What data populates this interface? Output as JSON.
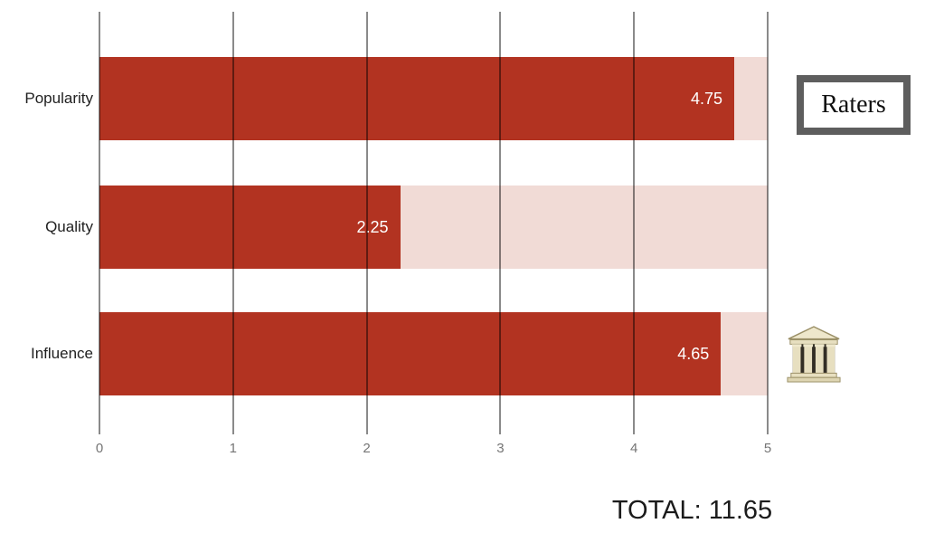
{
  "chart_data": {
    "type": "bar",
    "orientation": "horizontal",
    "title": "",
    "categories": [
      "Popularity",
      "Quality",
      "Influence"
    ],
    "values": [
      4.75,
      2.25,
      4.65
    ],
    "value_labels": [
      "4.75",
      "2.25",
      "4.65"
    ],
    "xlabel": "",
    "ylabel": "",
    "xlim": [
      0,
      5
    ],
    "x_ticks": [
      "0",
      "1",
      "2",
      "3",
      "4",
      "5"
    ],
    "grid": "vertical gridlines on",
    "legend_position": "none",
    "colors": {
      "bar": "#b23321",
      "track": "#f1dbd6",
      "gridline": "#757575",
      "value_label": "#ffffff",
      "tick_label": "#757575",
      "category_label": "#212121"
    }
  },
  "raters_box": {
    "label": "Raters",
    "border_color": "#5e5e5e"
  },
  "icons": {
    "influence_icon": "classical-building-icon",
    "glyph": "🏛"
  },
  "footer": {
    "total_label": "TOTAL: 11.65"
  }
}
